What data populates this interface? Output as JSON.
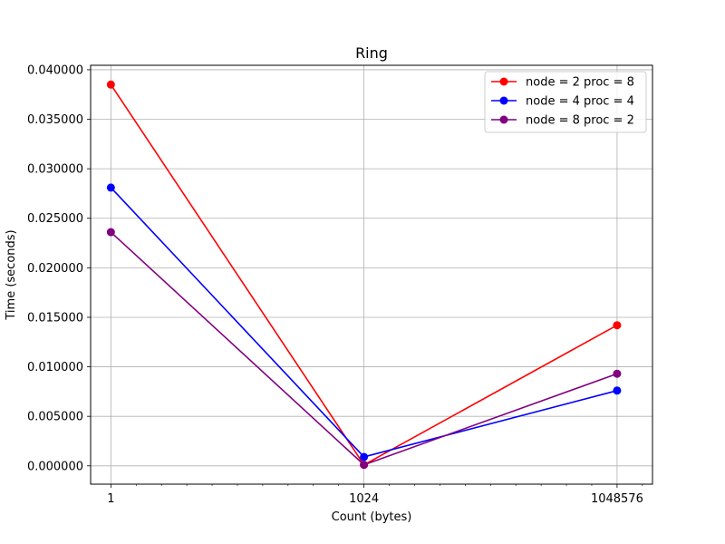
{
  "chart_data": {
    "type": "line",
    "title": "Ring",
    "xlabel": "Count (bytes)",
    "ylabel": "Time (seconds)",
    "xscale": "log2",
    "x": [
      1,
      1024,
      1048576
    ],
    "xtick_labels": [
      "1",
      "1024",
      "1048576"
    ],
    "xlim_exp2": [
      -0.8,
      21.4
    ],
    "ylim": [
      -0.00185,
      0.04045
    ],
    "yticks": [
      0.0,
      0.005,
      0.01,
      0.015,
      0.02,
      0.025,
      0.03,
      0.035,
      0.04
    ],
    "ytick_labels": [
      "0.000000",
      "0.005000",
      "0.010000",
      "0.015000",
      "0.020000",
      "0.025000",
      "0.030000",
      "0.035000",
      "0.040000"
    ],
    "grid": true,
    "legend_position": "top-right",
    "marker": "circle",
    "series": [
      {
        "name": "node = 2 proc = 8",
        "color": "#ff0000",
        "values": [
          0.0385,
          0.0001,
          0.0142
        ]
      },
      {
        "name": "node = 4 proc = 4",
        "color": "#0000ff",
        "values": [
          0.0281,
          0.0009,
          0.0076
        ]
      },
      {
        "name": "node = 8 proc = 2",
        "color": "#800080",
        "values": [
          0.0236,
          0.0001,
          0.0093
        ]
      }
    ]
  }
}
